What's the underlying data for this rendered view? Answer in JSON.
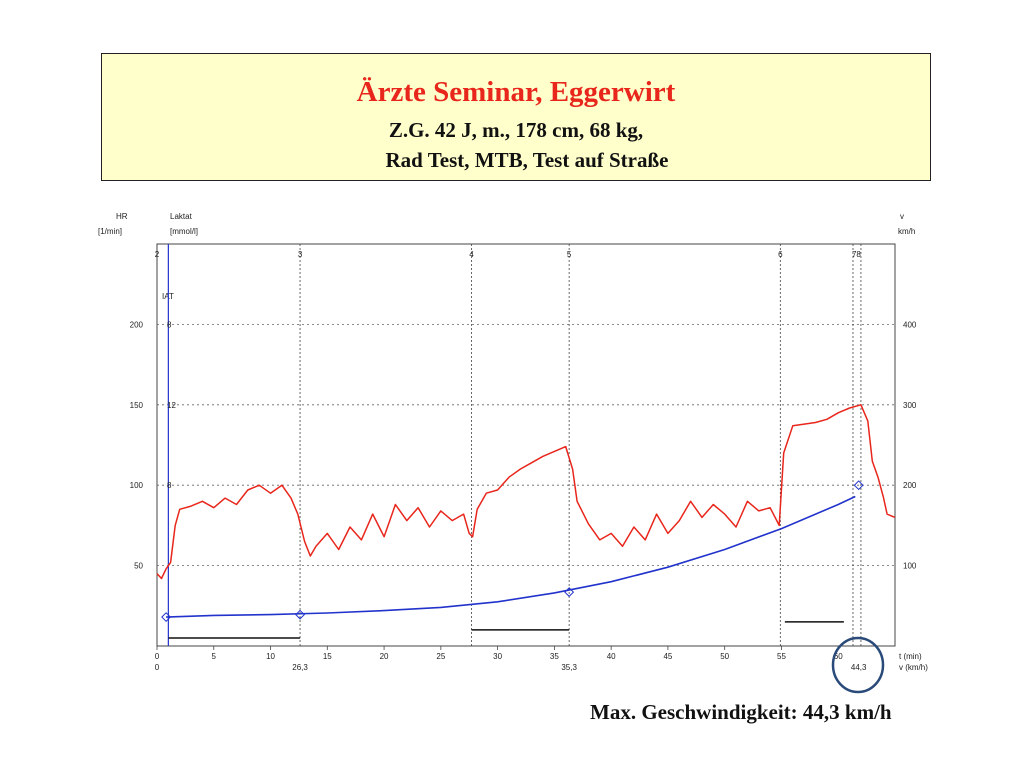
{
  "header": {
    "title": "Ärzte Seminar, Eggerwirt",
    "line1": "Z.G. 42 J, m., 178 cm, 68 kg,",
    "line2": "Rad Test,  MTB, Test auf Straße"
  },
  "footer": {
    "text": "Max. Geschwindigkeit: 44,3 km/h"
  },
  "chart_data": {
    "type": "line",
    "title": "",
    "axes": {
      "left_outer": {
        "label": "HR",
        "unit": "[1/min]",
        "ticks": [
          "50",
          "100",
          "150",
          "200"
        ],
        "range": [
          0,
          250
        ]
      },
      "left_inner": {
        "label": "Laktat",
        "unit": "[mmol/l]",
        "ticks": [
          "8",
          "12",
          "8"
        ]
      },
      "right": {
        "label": "v",
        "unit": "km/h",
        "ticks": [
          "100",
          "200",
          "300",
          "400"
        ],
        "range": [
          0,
          500
        ]
      },
      "x_time": {
        "label": "t (min)",
        "ticks": [
          "0",
          "5",
          "10",
          "15",
          "20",
          "25",
          "30",
          "35",
          "40",
          "45",
          "50",
          "55",
          "60"
        ],
        "range": [
          0,
          65
        ]
      },
      "x_speed": {
        "label": "v (km/h)",
        "ticks": [
          "0",
          "26,3",
          "35,3",
          "44,3"
        ]
      }
    },
    "marker_labels": [
      "2",
      "3",
      "4",
      "5",
      "6",
      "78"
    ],
    "markers_t": [
      0,
      12.6,
      27.7,
      36.3,
      54.9,
      61.3,
      62.0
    ],
    "iat_label": "IAT",
    "hr_series": {
      "name": "HR",
      "color": "#e8261c",
      "points": [
        [
          0,
          45
        ],
        [
          0.4,
          42
        ],
        [
          0.8,
          48
        ],
        [
          1.2,
          52
        ],
        [
          1.6,
          75
        ],
        [
          2,
          85
        ],
        [
          3,
          87
        ],
        [
          4,
          90
        ],
        [
          5,
          86
        ],
        [
          6,
          92
        ],
        [
          7,
          88
        ],
        [
          8,
          97
        ],
        [
          9,
          100
        ],
        [
          10,
          95
        ],
        [
          11,
          100
        ],
        [
          11.8,
          92
        ],
        [
          12.4,
          82
        ],
        [
          13,
          65
        ],
        [
          13.5,
          56
        ],
        [
          14,
          62
        ],
        [
          15,
          70
        ],
        [
          16,
          60
        ],
        [
          17,
          74
        ],
        [
          18,
          66
        ],
        [
          19,
          82
        ],
        [
          20,
          68
        ],
        [
          21,
          88
        ],
        [
          22,
          78
        ],
        [
          23,
          86
        ],
        [
          24,
          74
        ],
        [
          25,
          84
        ],
        [
          26,
          78
        ],
        [
          27,
          82
        ],
        [
          27.5,
          70
        ],
        [
          27.8,
          68
        ],
        [
          28.2,
          85
        ],
        [
          29,
          95
        ],
        [
          30,
          97
        ],
        [
          31,
          105
        ],
        [
          32,
          110
        ],
        [
          33,
          114
        ],
        [
          34,
          118
        ],
        [
          35,
          121
        ],
        [
          36,
          124
        ],
        [
          36.6,
          110
        ],
        [
          37,
          90
        ],
        [
          38,
          76
        ],
        [
          39,
          66
        ],
        [
          40,
          70
        ],
        [
          41,
          62
        ],
        [
          42,
          74
        ],
        [
          43,
          66
        ],
        [
          44,
          82
        ],
        [
          45,
          70
        ],
        [
          46,
          78
        ],
        [
          47,
          90
        ],
        [
          48,
          80
        ],
        [
          49,
          88
        ],
        [
          50,
          82
        ],
        [
          51,
          74
        ],
        [
          52,
          90
        ],
        [
          53,
          84
        ],
        [
          54,
          86
        ],
        [
          54.8,
          75
        ],
        [
          55.2,
          120
        ],
        [
          56,
          137
        ],
        [
          57,
          138
        ],
        [
          58,
          139
        ],
        [
          59,
          141
        ],
        [
          60,
          145
        ],
        [
          61,
          148
        ],
        [
          62,
          150
        ],
        [
          62.6,
          140
        ],
        [
          63,
          115
        ],
        [
          63.5,
          105
        ],
        [
          64,
          92
        ],
        [
          64.3,
          82
        ],
        [
          65,
          80
        ]
      ]
    },
    "speed_series": {
      "name": "v",
      "color": "#2233cc",
      "points": [
        [
          0.8,
          18
        ],
        [
          5,
          19
        ],
        [
          10,
          19.5
        ],
        [
          15,
          20.5
        ],
        [
          20,
          22
        ],
        [
          25,
          24
        ],
        [
          30,
          27.5
        ],
        [
          35,
          33
        ],
        [
          40,
          40
        ],
        [
          45,
          49
        ],
        [
          50,
          60
        ],
        [
          55,
          73
        ],
        [
          60,
          88
        ],
        [
          61.5,
          93
        ]
      ],
      "points_markers": [
        [
          0.8,
          18
        ],
        [
          12.6,
          19.5
        ],
        [
          36.3,
          33.5
        ],
        [
          61.8,
          100
        ]
      ]
    },
    "stage_bars": [
      {
        "t_start": 1.0,
        "t_end": 12.6,
        "hr": 5
      },
      {
        "t_start": 27.7,
        "t_end": 36.3,
        "hr": 10
      },
      {
        "t_start": 55.3,
        "t_end": 60.5,
        "hr": 15
      }
    ]
  }
}
